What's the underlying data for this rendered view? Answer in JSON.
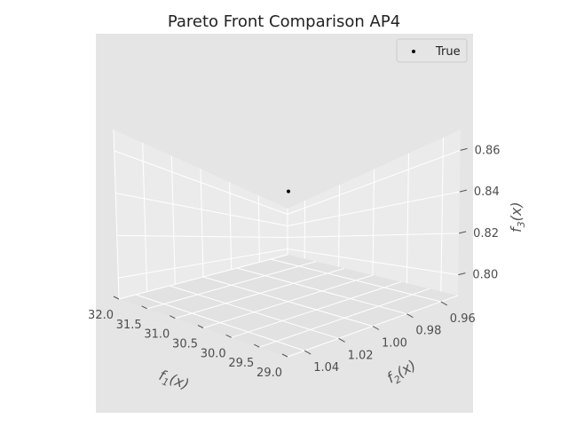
{
  "chart_data": {
    "type": "scatter",
    "projection": "3d",
    "title": "Pareto Front Comparison AP4",
    "series": [
      {
        "name": "True",
        "points": [
          {
            "x": 30.5,
            "y": 1.0,
            "z": 0.84
          }
        ],
        "color": "#000000"
      }
    ],
    "xlabel": "f1(x)",
    "ylabel": "f2(x)",
    "zlabel": "f3(x)",
    "x_ticks": [
      "32.0",
      "31.5",
      "31.0",
      "30.5",
      "30.0",
      "29.5",
      "29.0"
    ],
    "y_ticks": [
      "1.04",
      "1.02",
      "1.00",
      "0.98",
      "0.96"
    ],
    "z_ticks": [
      "0.80",
      "0.82",
      "0.84",
      "0.86"
    ],
    "xlim": [
      29.0,
      32.0
    ],
    "ylim": [
      0.95,
      1.05
    ],
    "zlim": [
      0.79,
      0.87
    ],
    "grid": true,
    "legend": "top-right",
    "style": "ggplot",
    "colors": {
      "axes_bg": "#e5e5e5",
      "pane": "#ececec",
      "grid": "#ffffff",
      "tick_text": "#4d4d4d"
    }
  }
}
